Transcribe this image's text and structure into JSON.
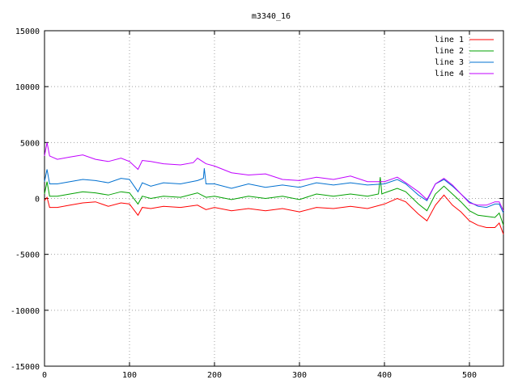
{
  "chart_data": {
    "type": "line",
    "title": "m3340_16",
    "xlabel": "",
    "ylabel": "",
    "xlim": [
      0,
      540
    ],
    "ylim": [
      -15000,
      15000
    ],
    "xticks": [
      0,
      100,
      200,
      300,
      400,
      500
    ],
    "yticks": [
      -15000,
      -10000,
      -5000,
      0,
      5000,
      10000,
      15000
    ],
    "grid": true,
    "legend_position": "top-right",
    "series": [
      {
        "name": "line 1",
        "color": "#ff0000",
        "x": [
          0,
          3,
          6,
          15,
          30,
          45,
          60,
          75,
          90,
          100,
          110,
          115,
          125,
          140,
          160,
          180,
          190,
          200,
          220,
          240,
          260,
          280,
          300,
          320,
          340,
          360,
          380,
          400,
          415,
          425,
          440,
          450,
          460,
          470,
          480,
          490,
          500,
          510,
          520,
          530,
          535,
          540
        ],
        "y": [
          -200,
          100,
          -800,
          -800,
          -600,
          -400,
          -300,
          -700,
          -400,
          -500,
          -1500,
          -800,
          -900,
          -700,
          -800,
          -600,
          -1000,
          -800,
          -1100,
          -900,
          -1100,
          -900,
          -1200,
          -800,
          -900,
          -700,
          -900,
          -500,
          0,
          -300,
          -1400,
          -2000,
          -600,
          300,
          -600,
          -1200,
          -2000,
          -2400,
          -2600,
          -2600,
          -2200,
          -3200
        ]
      },
      {
        "name": "line 2",
        "color": "#00a000",
        "x": [
          0,
          3,
          6,
          15,
          30,
          45,
          60,
          75,
          90,
          100,
          110,
          115,
          125,
          140,
          160,
          180,
          190,
          200,
          220,
          240,
          260,
          280,
          300,
          320,
          340,
          360,
          380,
          393,
          395,
          397,
          400,
          415,
          425,
          440,
          450,
          460,
          470,
          480,
          490,
          500,
          510,
          520,
          530,
          535,
          540
        ],
        "y": [
          400,
          1500,
          200,
          200,
          400,
          600,
          500,
          300,
          600,
          500,
          -500,
          200,
          0,
          200,
          100,
          500,
          100,
          200,
          -100,
          200,
          0,
          200,
          -100,
          400,
          200,
          400,
          200,
          400,
          1900,
          400,
          500,
          900,
          600,
          -500,
          -1100,
          400,
          1100,
          400,
          -300,
          -1100,
          -1500,
          -1600,
          -1700,
          -1300,
          -2400
        ]
      },
      {
        "name": "line 3",
        "color": "#0070d0",
        "x": [
          0,
          3,
          6,
          15,
          30,
          45,
          60,
          75,
          90,
          100,
          110,
          115,
          125,
          140,
          160,
          180,
          187,
          188,
          190,
          200,
          220,
          240,
          260,
          280,
          300,
          320,
          340,
          360,
          380,
          400,
          415,
          425,
          440,
          450,
          460,
          470,
          480,
          490,
          500,
          510,
          520,
          530,
          535,
          540
        ],
        "y": [
          1500,
          2600,
          1300,
          1300,
          1500,
          1700,
          1600,
          1400,
          1800,
          1700,
          600,
          1400,
          1100,
          1400,
          1300,
          1600,
          1800,
          2700,
          1300,
          1300,
          900,
          1300,
          1000,
          1200,
          1000,
          1400,
          1200,
          1400,
          1200,
          1300,
          1700,
          1300,
          300,
          -200,
          1300,
          1700,
          1100,
          400,
          -300,
          -700,
          -800,
          -500,
          -500,
          -1300
        ]
      },
      {
        "name": "line 4",
        "color": "#c000ff",
        "x": [
          0,
          3,
          6,
          15,
          30,
          45,
          60,
          75,
          90,
          100,
          110,
          115,
          125,
          140,
          160,
          175,
          180,
          190,
          200,
          220,
          240,
          260,
          280,
          300,
          320,
          340,
          360,
          380,
          400,
          415,
          425,
          440,
          450,
          460,
          470,
          480,
          490,
          500,
          510,
          520,
          530,
          535,
          540
        ],
        "y": [
          3800,
          5000,
          3800,
          3500,
          3700,
          3900,
          3500,
          3300,
          3600,
          3300,
          2600,
          3400,
          3300,
          3100,
          3000,
          3200,
          3600,
          3100,
          2900,
          2300,
          2100,
          2200,
          1700,
          1600,
          1900,
          1700,
          2000,
          1500,
          1500,
          1900,
          1400,
          600,
          -100,
          1300,
          1800,
          1200,
          400,
          -400,
          -600,
          -600,
          -300,
          -300,
          -1100
        ]
      }
    ]
  }
}
